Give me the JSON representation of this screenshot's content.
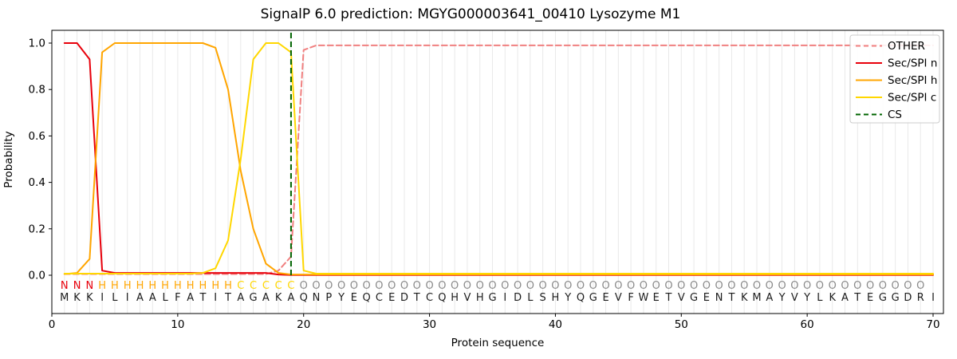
{
  "title": "SignalP 6.0 prediction: MGYG000003641_00410 Lysozyme M1",
  "chart_data": {
    "type": "line",
    "title": "SignalP 6.0 prediction: MGYG000003641_00410 Lysozyme M1",
    "xlabel": "Protein sequence",
    "ylabel": "Probability",
    "xlim": [
      0,
      70.8
    ],
    "ylim": [
      -0.165,
      1.055
    ],
    "grid": "vertical-per-residue",
    "legend_position": "upper right",
    "axes": {
      "xticks": [
        0,
        10,
        20,
        30,
        40,
        50,
        60,
        70
      ],
      "xtick_labels": [
        "0",
        "10",
        "20",
        "30",
        "40",
        "50",
        "60",
        "70"
      ],
      "yticks": [
        0.0,
        0.2,
        0.4,
        0.6,
        0.8,
        1.0
      ],
      "ytick_labels": [
        "0.0",
        "0.2",
        "0.4",
        "0.6",
        "0.8",
        "1.0"
      ]
    },
    "x": [
      1,
      2,
      3,
      4,
      5,
      6,
      7,
      8,
      9,
      10,
      11,
      12,
      13,
      14,
      15,
      16,
      17,
      18,
      19,
      20,
      21,
      22,
      23,
      24,
      25,
      26,
      27,
      28,
      29,
      30,
      31,
      32,
      33,
      34,
      35,
      36,
      37,
      38,
      39,
      40,
      41,
      42,
      43,
      44,
      45,
      46,
      47,
      48,
      49,
      50,
      51,
      52,
      53,
      54,
      55,
      56,
      57,
      58,
      59,
      60,
      61,
      62,
      63,
      64,
      65,
      66,
      67,
      68,
      69,
      70
    ],
    "sequence": "MKKILIAALFATITAGAKAQNPYEQCEDTCQHVHGIDLSHYQGEVFWETVGENTKMAYVYLKATEGGDRI",
    "states": "NNNHHHHHHHHHHHCCCCCOOOOOOOOOOOOOOOOOOOOOOOOOOOOOOOOOOOOOOOOOOOOOOOOOO",
    "state_colors": {
      "N": "#e8000b",
      "H": "#ffa500",
      "C": "#ffd700",
      "O": "#8a8a8a"
    },
    "residue_color": "#1c1c1c",
    "grid_color": "#e9e9e9",
    "series": [
      {
        "name": "OTHER",
        "color": "#f08080",
        "dashed": true,
        "values": [
          0.005,
          0.005,
          0.005,
          0.005,
          0.005,
          0.005,
          0.005,
          0.005,
          0.005,
          0.005,
          0.005,
          0.005,
          0.005,
          0.005,
          0.005,
          0.005,
          0.005,
          0.02,
          0.08,
          0.97,
          0.99,
          0.99,
          0.99,
          0.99,
          0.99,
          0.99,
          0.99,
          0.99,
          0.99,
          0.99,
          0.99,
          0.99,
          0.99,
          0.99,
          0.99,
          0.99,
          0.99,
          0.99,
          0.99,
          0.99,
          0.99,
          0.99,
          0.99,
          0.99,
          0.99,
          0.99,
          0.99,
          0.99,
          0.99,
          0.99,
          0.99,
          0.99,
          0.99,
          0.99,
          0.99,
          0.99,
          0.99,
          0.99,
          0.99,
          0.99,
          0.99,
          0.99,
          0.99,
          0.99,
          0.99,
          0.99,
          0.99,
          0.99,
          0.99,
          0.99
        ]
      },
      {
        "name": "Sec/SPI n",
        "color": "#e8000b",
        "dashed": false,
        "values": [
          1.0,
          1.0,
          0.93,
          0.02,
          0.01,
          0.01,
          0.01,
          0.01,
          0.01,
          0.01,
          0.01,
          0.01,
          0.01,
          0.01,
          0.01,
          0.01,
          0.01,
          0.003,
          0.001,
          0.001,
          0.001,
          0.001,
          0.001,
          0.001,
          0.001,
          0.001,
          0.001,
          0.001,
          0.001,
          0.001,
          0.001,
          0.001,
          0.001,
          0.001,
          0.001,
          0.001,
          0.001,
          0.001,
          0.001,
          0.001,
          0.001,
          0.001,
          0.001,
          0.001,
          0.001,
          0.001,
          0.001,
          0.001,
          0.001,
          0.001,
          0.001,
          0.001,
          0.001,
          0.001,
          0.001,
          0.001,
          0.001,
          0.001,
          0.001,
          0.001,
          0.001,
          0.001,
          0.001,
          0.001,
          0.001,
          0.001,
          0.001,
          0.001,
          0.001,
          0.001
        ]
      },
      {
        "name": "Sec/SPI h",
        "color": "#ffa500",
        "dashed": false,
        "values": [
          0.005,
          0.01,
          0.07,
          0.96,
          1.0,
          1.0,
          1.0,
          1.0,
          1.0,
          1.0,
          1.0,
          1.0,
          0.98,
          0.8,
          0.45,
          0.2,
          0.05,
          0.01,
          0.003,
          0.003,
          0.003,
          0.003,
          0.003,
          0.003,
          0.003,
          0.003,
          0.003,
          0.003,
          0.003,
          0.003,
          0.003,
          0.003,
          0.003,
          0.003,
          0.003,
          0.003,
          0.003,
          0.003,
          0.003,
          0.003,
          0.003,
          0.003,
          0.003,
          0.003,
          0.003,
          0.003,
          0.003,
          0.003,
          0.003,
          0.003,
          0.003,
          0.003,
          0.003,
          0.003,
          0.003,
          0.003,
          0.003,
          0.003,
          0.003,
          0.003,
          0.003,
          0.003,
          0.003,
          0.003,
          0.003,
          0.003,
          0.003,
          0.003,
          0.003,
          0.003
        ]
      },
      {
        "name": "Sec/SPI c",
        "color": "#ffd700",
        "dashed": false,
        "values": [
          0.007,
          0.007,
          0.007,
          0.007,
          0.007,
          0.007,
          0.007,
          0.007,
          0.007,
          0.007,
          0.007,
          0.01,
          0.03,
          0.15,
          0.5,
          0.93,
          1.0,
          1.0,
          0.96,
          0.02,
          0.007,
          0.007,
          0.007,
          0.007,
          0.007,
          0.007,
          0.007,
          0.007,
          0.007,
          0.007,
          0.007,
          0.007,
          0.007,
          0.007,
          0.007,
          0.007,
          0.007,
          0.007,
          0.007,
          0.007,
          0.007,
          0.007,
          0.007,
          0.007,
          0.007,
          0.007,
          0.007,
          0.007,
          0.007,
          0.007,
          0.007,
          0.007,
          0.007,
          0.007,
          0.007,
          0.007,
          0.007,
          0.007,
          0.007,
          0.007,
          0.007,
          0.007,
          0.007,
          0.007,
          0.007,
          0.007,
          0.007,
          0.007,
          0.007,
          0.007
        ]
      }
    ],
    "cs": {
      "label": "CS",
      "position": 19,
      "color": "#006400",
      "dashed": true
    },
    "legend": {
      "entries": [
        {
          "label": "OTHER",
          "color": "#f08080",
          "dashed": true
        },
        {
          "label": "Sec/SPI n",
          "color": "#e8000b",
          "dashed": false
        },
        {
          "label": "Sec/SPI h",
          "color": "#ffa500",
          "dashed": false
        },
        {
          "label": "Sec/SPI c",
          "color": "#ffd700",
          "dashed": false
        },
        {
          "label": "CS",
          "color": "#006400",
          "dashed": true
        }
      ]
    }
  }
}
